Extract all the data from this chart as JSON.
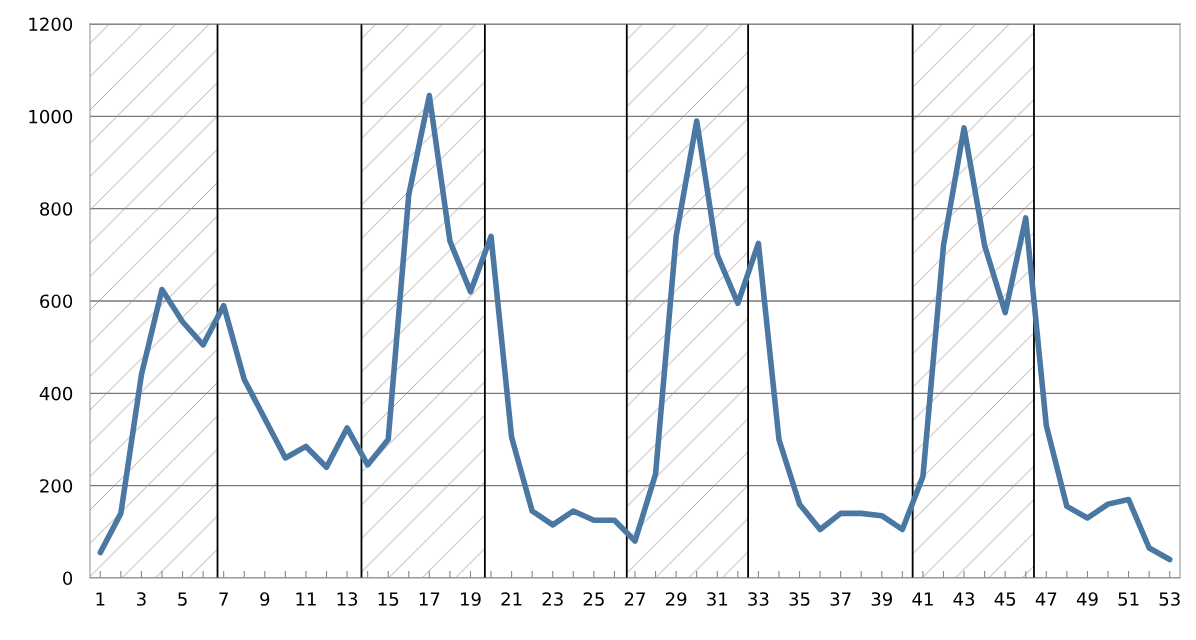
{
  "chart_data": {
    "type": "line",
    "x": [
      1,
      2,
      3,
      4,
      5,
      6,
      7,
      8,
      9,
      10,
      11,
      12,
      13,
      14,
      15,
      16,
      17,
      18,
      19,
      20,
      21,
      22,
      23,
      24,
      25,
      26,
      27,
      28,
      29,
      30,
      31,
      32,
      33,
      34,
      35,
      36,
      37,
      38,
      39,
      40,
      41,
      42,
      43,
      44,
      45,
      46,
      47,
      48,
      49,
      50,
      51,
      52,
      53
    ],
    "series": [
      {
        "color": "#4a78a2",
        "values": [
          55,
          140,
          440,
          625,
          555,
          505,
          590,
          430,
          345,
          260,
          285,
          240,
          325,
          245,
          300,
          830,
          1045,
          730,
          620,
          740,
          305,
          145,
          115,
          145,
          125,
          125,
          80,
          225,
          740,
          990,
          700,
          595,
          725,
          300,
          160,
          105,
          140,
          140,
          135,
          105,
          220,
          720,
          975,
          720,
          575,
          780,
          330,
          155,
          130,
          160,
          170,
          65,
          40
        ]
      }
    ],
    "xlim": [
      0.5,
      53.5
    ],
    "xticks": [
      1,
      {
        "value": 2,
        "label": null
      },
      3,
      {
        "value": 4,
        "label": null
      },
      5,
      {
        "value": 6,
        "label": null
      },
      7,
      {
        "value": 8,
        "label": null
      },
      9,
      {
        "value": 10,
        "label": null
      },
      11,
      {
        "value": 12,
        "label": null
      },
      13,
      {
        "value": 14,
        "label": null
      },
      15,
      {
        "value": 16,
        "label": null
      },
      17,
      {
        "value": 18,
        "label": null
      },
      19,
      {
        "value": 20,
        "label": null
      },
      21,
      {
        "value": 22,
        "label": null
      },
      23,
      {
        "value": 24,
        "label": null
      },
      25,
      {
        "value": 26,
        "label": null
      },
      27,
      {
        "value": 28,
        "label": null
      },
      29,
      {
        "value": 30,
        "label": null
      },
      31,
      {
        "value": 32,
        "label": null
      },
      33,
      {
        "value": 34,
        "label": null
      },
      35,
      {
        "value": 36,
        "label": null
      },
      37,
      {
        "value": 38,
        "label": null
      },
      39,
      {
        "value": 40,
        "label": null
      },
      41,
      {
        "value": 42,
        "label": null
      },
      43,
      {
        "value": 44,
        "label": null
      },
      45,
      {
        "value": 46,
        "label": null
      },
      47,
      {
        "value": 48,
        "label": null
      },
      49,
      {
        "value": 50,
        "label": null
      },
      51,
      {
        "value": 52,
        "label": null
      },
      53
    ],
    "ylim": [
      0,
      1200
    ],
    "yticks": [
      0,
      200,
      400,
      600,
      800,
      1000,
      1200
    ],
    "bands": [
      {
        "axis": "x",
        "from": 0.5,
        "to": 6.7,
        "color": "#9a9a9a"
      },
      {
        "axis": "x",
        "from": 13.7,
        "to": 19.7,
        "color": "#9a9a9a"
      },
      {
        "axis": "x",
        "from": 26.6,
        "to": 32.5,
        "color": "#9a9a9a"
      },
      {
        "axis": "x",
        "from": 40.5,
        "to": 46.4,
        "color": "#9a9a9a"
      }
    ],
    "grid": "y",
    "marker": "none",
    "line_style": "solid"
  }
}
